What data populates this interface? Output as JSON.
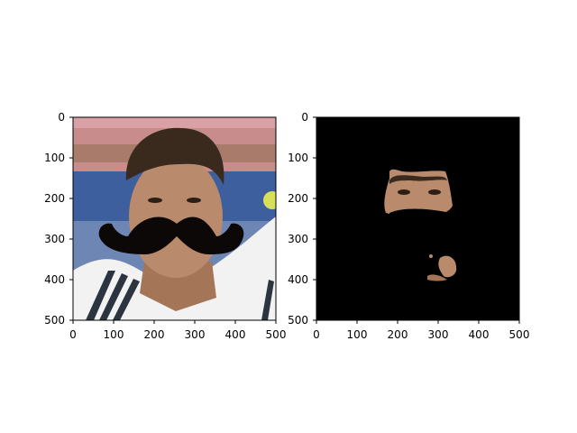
{
  "figure": {
    "background": "#ffffff",
    "panels": [
      {
        "name": "left",
        "description_of_content": "photo",
        "x_ticks": [
          "0",
          "100",
          "200",
          "300",
          "400",
          "500"
        ],
        "y_ticks": [
          "0",
          "100",
          "200",
          "300",
          "400",
          "500"
        ]
      },
      {
        "name": "right",
        "description_of_content": "masked",
        "x_ticks": [
          "0",
          "100",
          "200",
          "300",
          "400",
          "500"
        ],
        "y_ticks": [
          "0",
          "100",
          "200",
          "300",
          "400",
          "500"
        ]
      }
    ]
  },
  "colors": {
    "mask_background": "#000000",
    "mustache": "#0d0808",
    "skin": "#b98a6c",
    "hair": "#3a2a1e",
    "shirt": "#f2f2f2",
    "sky": "#3e5f9e",
    "crowd": "#c98c8c"
  }
}
